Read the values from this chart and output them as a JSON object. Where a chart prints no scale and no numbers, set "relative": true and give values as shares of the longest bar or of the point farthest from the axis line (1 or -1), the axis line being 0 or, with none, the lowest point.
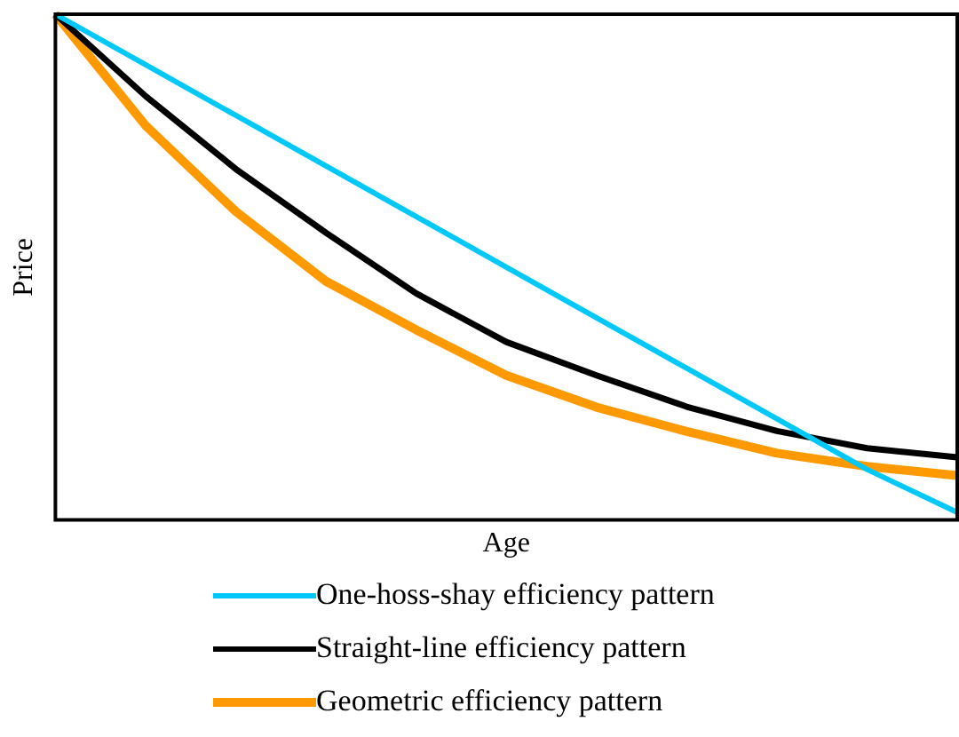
{
  "chart_data": {
    "type": "line",
    "xlabel": "Age",
    "ylabel": "Price",
    "relative": true,
    "legend": "bottom",
    "grid": false,
    "marker": "none",
    "line_style": "solid",
    "categories": [
      null,
      null,
      null,
      null,
      null,
      null,
      null,
      null,
      null,
      null,
      null
    ],
    "series": [
      {
        "name": "One-hoss-shay efficiency pattern",
        "color": "#00c8f8",
        "values": [
          1,
          0.9,
          0.8,
          0.7,
          0.6,
          0.5,
          0.4,
          0.3,
          0.2,
          0.1,
          0.015
        ]
      },
      {
        "name": "Straight-line efficiency pattern",
        "color": "#000000",
        "values": [
          1,
          0.838,
          0.694,
          0.568,
          0.448,
          0.352,
          0.286,
          0.224,
          0.176,
          0.142,
          0.124
        ]
      },
      {
        "name": "Geometric efficiency pattern",
        "color": "#ff9900",
        "values": [
          1,
          0.78,
          0.61,
          0.472,
          0.376,
          0.286,
          0.223,
          0.175,
          0.132,
          0.106,
          0.088
        ]
      }
    ]
  }
}
